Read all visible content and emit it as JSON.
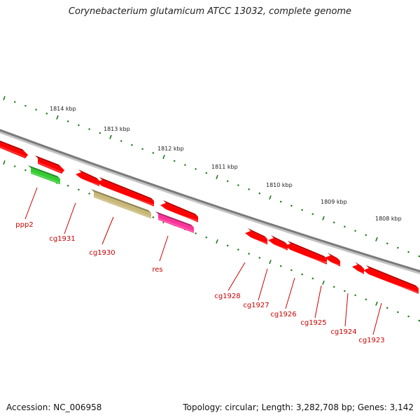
{
  "title": "Corynebacterium glutamicum ATCC 13032, complete genome",
  "footer": {
    "accession": "Accession: NC_006958",
    "stats": "Topology: circular; Length: 3,282,708 bp; Genes: 3,142"
  },
  "colors": {
    "backbone": "#8a8a8a",
    "tick": "#1e7a1e",
    "cds": "#ff0000",
    "rrna": "#33cc33",
    "trna": "#c8b878",
    "misc": "#ff3399",
    "label": "#cc0000"
  },
  "kbp_labels": [
    "1814 kbp",
    "1813 kbp",
    "1812 kbp",
    "1811 kbp",
    "1810 kbp",
    "1809 kbp",
    "1808 kbp"
  ],
  "gene_labels": [
    "ppp2",
    "cg1931",
    "cg1930",
    "res",
    "cg1928",
    "cg1927",
    "cg1926",
    "cg1925",
    "cg1924",
    "cg1923"
  ]
}
